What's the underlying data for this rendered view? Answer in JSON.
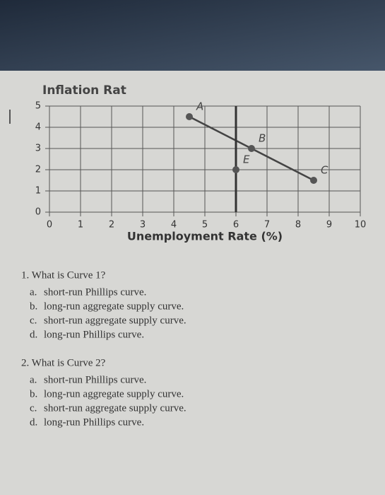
{
  "chart_data": {
    "type": "scatter",
    "title": "Inflation Rat",
    "x_label": "Unemployment Rate (%)",
    "x": [
      4.5,
      6.5,
      8.5,
      6
    ],
    "values": [
      4.5,
      3,
      1.5,
      2
    ],
    "labels": [
      "A",
      "B",
      "C",
      "E"
    ],
    "color": "#555555",
    "xlim": [
      0,
      10
    ],
    "ylim": [
      0,
      5
    ],
    "xticks": [
      0,
      1,
      2,
      3,
      4,
      5,
      6,
      7,
      8,
      9,
      10
    ],
    "yticks": [
      0,
      1,
      2,
      3,
      4,
      5
    ],
    "grid": true
  },
  "questions": [
    {
      "title": "1. What is Curve 1?",
      "options": [
        {
          "letter": "a.",
          "text": "short-run Phillips curve."
        },
        {
          "letter": "b.",
          "text": "long-run aggregate supply curve."
        },
        {
          "letter": "c.",
          "text": "short-run aggregate supply curve."
        },
        {
          "letter": "d.",
          "text": "long-run Phillips curve."
        }
      ]
    },
    {
      "title": "2. What is Curve 2?",
      "options": [
        {
          "letter": "a.",
          "text": "short-run Phillips curve."
        },
        {
          "letter": "b.",
          "text": "long-run aggregate supply curve."
        },
        {
          "letter": "c.",
          "text": "short-run aggregate supply curve."
        },
        {
          "letter": "d.",
          "text": "long-run Phillips curve."
        }
      ]
    }
  ]
}
